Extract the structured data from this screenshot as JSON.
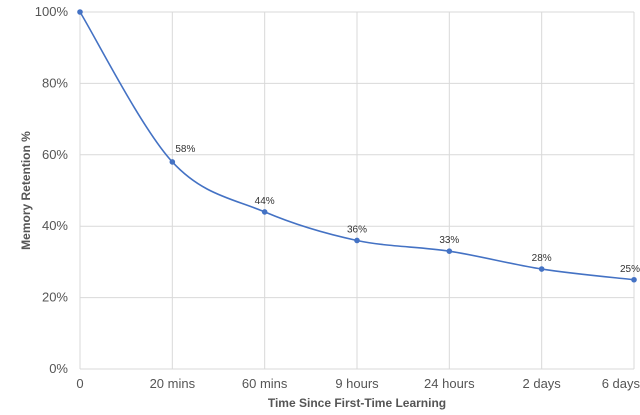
{
  "chart_data": {
    "type": "line",
    "title": "",
    "xlabel": "Time Since First-Time Learning",
    "ylabel": "Memory Retention %",
    "categories": [
      "0",
      "20 mins",
      "60 mins",
      "9 hours",
      "24 hours",
      "2 days",
      "6 days"
    ],
    "series": [
      {
        "values": [
          100,
          58,
          44,
          36,
          33,
          28,
          25
        ]
      }
    ],
    "data_labels": [
      "",
      "58%",
      "44%",
      "36%",
      "33%",
      "28%",
      "25%"
    ],
    "ylim": [
      0,
      100
    ],
    "yticks": [
      0,
      20,
      40,
      60,
      80,
      100
    ],
    "ytick_labels": [
      "0%",
      "20%",
      "40%",
      "60%",
      "80%",
      "100%"
    ],
    "grid": true,
    "legend": "none",
    "line_color": "#4472c4",
    "smooth": true
  }
}
